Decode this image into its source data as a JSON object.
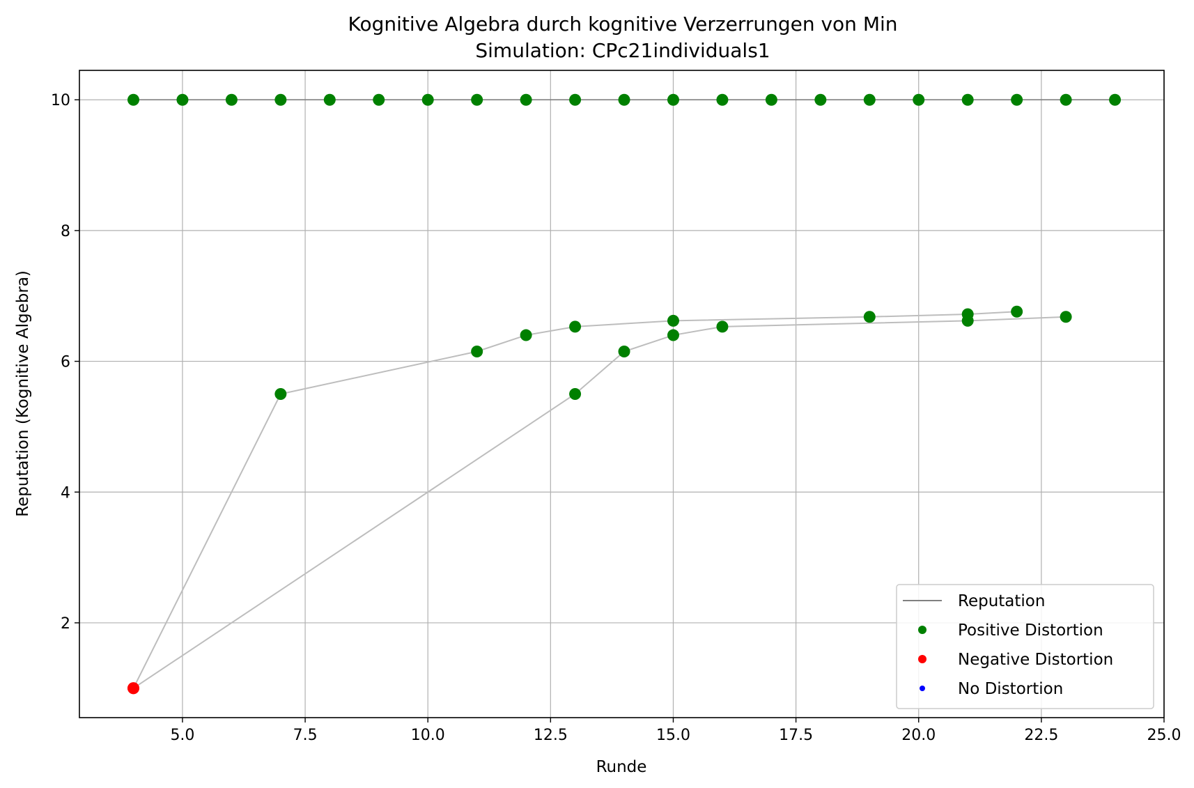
{
  "chart_data": {
    "type": "line",
    "title": "Kognitive Algebra durch kognitive Verzerrungen von Min",
    "subtitle": "Simulation: CPc21individuals1",
    "xlabel": "Runde",
    "ylabel": "Reputation (Kognitive Algebra)",
    "xlim": [
      2.9,
      25.0
    ],
    "ylim": [
      0.55,
      10.45
    ],
    "xticks": [
      "5.0",
      "7.5",
      "10.0",
      "12.5",
      "15.0",
      "17.5",
      "20.0",
      "22.5",
      "25.0"
    ],
    "xtick_values": [
      5,
      7.5,
      10,
      12.5,
      15,
      17.5,
      20,
      22.5,
      25
    ],
    "yticks": [
      "2",
      "4",
      "6",
      "8",
      "10"
    ],
    "ytick_values": [
      2,
      4,
      6,
      8,
      10
    ],
    "grid": true,
    "legend_position": "lower right",
    "legend": [
      {
        "label": "Reputation",
        "kind": "line",
        "color": "#808080"
      },
      {
        "label": "Positive Distortion",
        "kind": "marker",
        "color": "#008000"
      },
      {
        "label": "Negative Distortion",
        "kind": "marker",
        "color": "#ff0000"
      },
      {
        "label": "No Distortion",
        "kind": "marker",
        "color": "#0000ff"
      }
    ],
    "series": [
      {
        "x": [
          4,
          5,
          6,
          7,
          8,
          9,
          10,
          11,
          12,
          13,
          14,
          15,
          16,
          17,
          18,
          19,
          20,
          21,
          22,
          23,
          24
        ],
        "y": [
          10,
          10,
          10,
          10,
          10,
          10,
          10,
          10,
          10,
          10,
          10,
          10,
          10,
          10,
          10,
          10,
          10,
          10,
          10,
          10,
          10
        ],
        "distortion": [
          "positive",
          "positive",
          "positive",
          "positive",
          "positive",
          "positive",
          "positive",
          "positive",
          "positive",
          "positive",
          "positive",
          "positive",
          "positive",
          "positive",
          "positive",
          "positive",
          "positive",
          "positive",
          "positive",
          "positive",
          "positive"
        ]
      },
      {
        "x": [
          4,
          7,
          11,
          12,
          13,
          15,
          19,
          21,
          22
        ],
        "y": [
          1.0,
          5.5,
          6.15,
          6.4,
          6.53,
          6.62,
          6.68,
          6.72,
          6.76
        ],
        "distortion": [
          "negative",
          "positive",
          "positive",
          "positive",
          "positive",
          "positive",
          "positive",
          "positive",
          "positive"
        ]
      },
      {
        "x": [
          4,
          13,
          14,
          15,
          16,
          21,
          23
        ],
        "y": [
          1.0,
          5.5,
          6.15,
          6.4,
          6.53,
          6.62,
          6.68
        ],
        "distortion": [
          "negative",
          "positive",
          "positive",
          "positive",
          "positive",
          "positive",
          "positive"
        ]
      }
    ]
  },
  "colors": {
    "line": "#bdbdbd",
    "top_line": "#808080",
    "positive": "#008000",
    "negative": "#ff0000",
    "none": "#0000ff",
    "grid": "#b0b0b0"
  }
}
